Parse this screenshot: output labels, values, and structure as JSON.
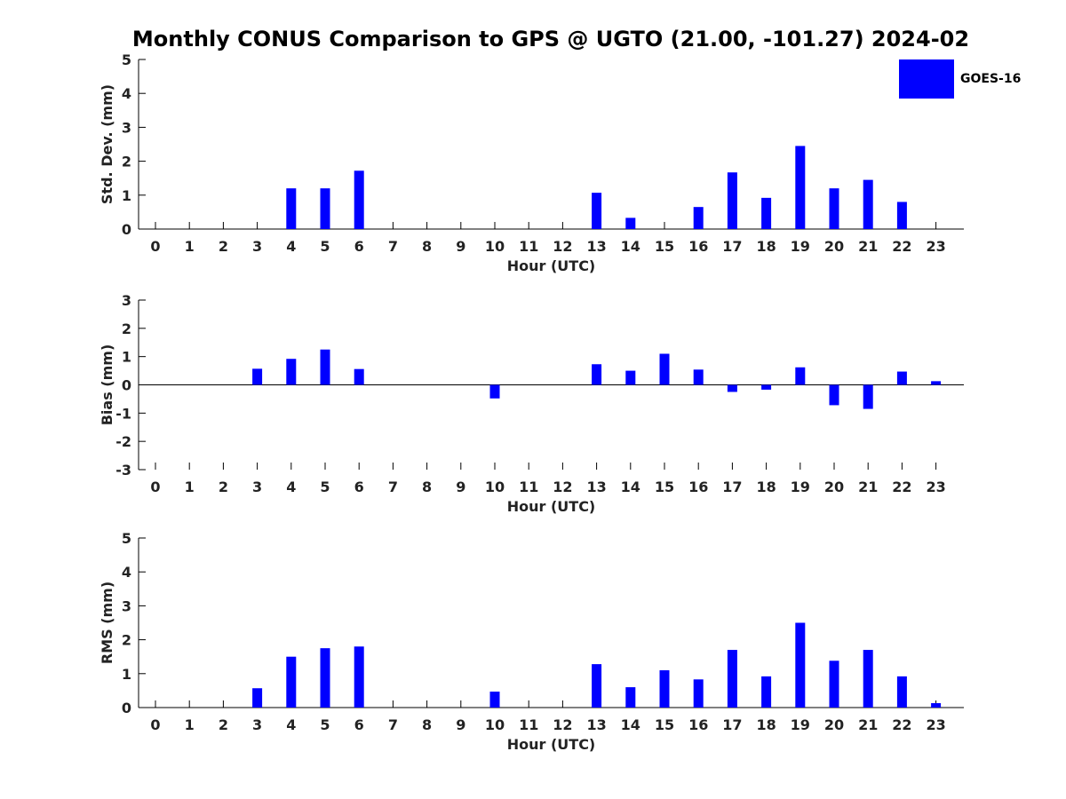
{
  "title": "Monthly CONUS Comparison to GPS @ UGTO (21.00, -101.27) 2024-02",
  "legend": {
    "label": "GOES-16",
    "color": "#0000ff"
  },
  "chart_data": [
    {
      "type": "bar",
      "name": "std-dev",
      "categories": [
        "0",
        "1",
        "2",
        "3",
        "4",
        "5",
        "6",
        "7",
        "8",
        "9",
        "10",
        "11",
        "12",
        "13",
        "14",
        "15",
        "16",
        "17",
        "18",
        "19",
        "20",
        "21",
        "22",
        "23"
      ],
      "series": [
        {
          "name": "GOES-16",
          "color": "#0000ff",
          "values": [
            null,
            null,
            null,
            null,
            1.2,
            1.2,
            1.72,
            null,
            null,
            null,
            null,
            null,
            null,
            1.07,
            0.33,
            null,
            0.65,
            1.67,
            0.92,
            2.45,
            1.2,
            1.45,
            0.8,
            null
          ]
        }
      ],
      "xlabel": "Hour (UTC)",
      "ylabel": "Std. Dev. (mm)",
      "ylim": [
        0,
        5
      ],
      "yticks": [
        "0",
        "1",
        "2",
        "3",
        "4",
        "5"
      ]
    },
    {
      "type": "bar",
      "name": "bias",
      "categories": [
        "0",
        "1",
        "2",
        "3",
        "4",
        "5",
        "6",
        "7",
        "8",
        "9",
        "10",
        "11",
        "12",
        "13",
        "14",
        "15",
        "16",
        "17",
        "18",
        "19",
        "20",
        "21",
        "22",
        "23"
      ],
      "series": [
        {
          "name": "GOES-16",
          "color": "#0000ff",
          "values": [
            null,
            null,
            null,
            0.57,
            0.92,
            1.25,
            0.56,
            null,
            null,
            null,
            -0.48,
            null,
            null,
            0.73,
            0.5,
            1.1,
            0.54,
            -0.25,
            -0.17,
            0.62,
            -0.72,
            -0.85,
            0.47,
            0.13
          ]
        }
      ],
      "xlabel": "Hour (UTC)",
      "ylabel": "Bias (mm)",
      "ylim": [
        -3,
        3
      ],
      "yticks": [
        "-3",
        "-2",
        "-1",
        "0",
        "1",
        "2",
        "3"
      ]
    },
    {
      "type": "bar",
      "name": "rms",
      "categories": [
        "0",
        "1",
        "2",
        "3",
        "4",
        "5",
        "6",
        "7",
        "8",
        "9",
        "10",
        "11",
        "12",
        "13",
        "14",
        "15",
        "16",
        "17",
        "18",
        "19",
        "20",
        "21",
        "22",
        "23"
      ],
      "series": [
        {
          "name": "GOES-16",
          "color": "#0000ff",
          "values": [
            null,
            null,
            null,
            0.57,
            1.5,
            1.75,
            1.8,
            null,
            null,
            null,
            0.47,
            null,
            null,
            1.28,
            0.6,
            1.1,
            0.83,
            1.7,
            0.92,
            2.5,
            1.38,
            1.7,
            0.92,
            0.13
          ]
        }
      ],
      "xlabel": "Hour (UTC)",
      "ylabel": "RMS (mm)",
      "ylim": [
        0,
        5
      ],
      "yticks": [
        "0",
        "1",
        "2",
        "3",
        "4",
        "5"
      ]
    }
  ]
}
